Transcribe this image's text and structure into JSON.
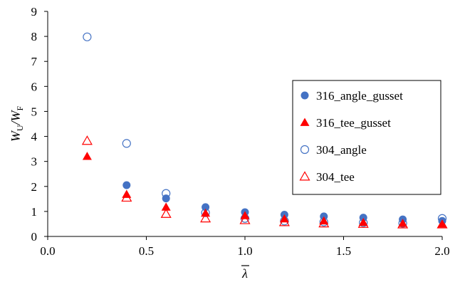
{
  "chart_data": {
    "type": "scatter",
    "xlabel": "λ",
    "ylabel": {
      "main": "W",
      "sub1": "U",
      "sep": "/W",
      "sub2": "F"
    },
    "xlim": [
      0.0,
      2.0
    ],
    "ylim": [
      0,
      9
    ],
    "x_ticks": [
      "0.0",
      "0.5",
      "1.0",
      "1.5",
      "2.0"
    ],
    "y_ticks": [
      "0",
      "1",
      "2",
      "3",
      "4",
      "5",
      "6",
      "7",
      "8",
      "9"
    ],
    "grid": false,
    "legend_position": "right",
    "series": [
      {
        "name": "316_angle_gusset",
        "marker": "filled-circle",
        "color": "#4472C4",
        "points": [
          [
            0.4,
            2.05
          ],
          [
            0.6,
            1.52
          ],
          [
            0.8,
            1.17
          ],
          [
            1.0,
            0.97
          ],
          [
            1.2,
            0.87
          ],
          [
            1.4,
            0.8
          ],
          [
            1.6,
            0.75
          ],
          [
            1.8,
            0.68
          ],
          [
            2.0,
            0.62
          ]
        ]
      },
      {
        "name": "316_tee_gusset",
        "marker": "filled-triangle",
        "color": "#FF0000",
        "points": [
          [
            0.2,
            3.2
          ],
          [
            0.4,
            1.68
          ],
          [
            0.6,
            1.17
          ],
          [
            0.8,
            0.93
          ],
          [
            1.0,
            0.83
          ],
          [
            1.2,
            0.7
          ],
          [
            1.4,
            0.62
          ],
          [
            1.6,
            0.56
          ],
          [
            1.8,
            0.52
          ],
          [
            2.0,
            0.5
          ]
        ]
      },
      {
        "name": "304_angle",
        "marker": "open-circle",
        "color": "#4472C4",
        "points": [
          [
            0.2,
            7.98
          ],
          [
            0.4,
            3.72
          ],
          [
            0.6,
            1.72
          ],
          [
            0.8,
            0.95
          ],
          [
            1.0,
            0.72
          ],
          [
            1.2,
            0.62
          ],
          [
            1.4,
            0.58
          ],
          [
            1.6,
            0.55
          ],
          [
            1.8,
            0.53
          ],
          [
            2.0,
            0.72
          ]
        ]
      },
      {
        "name": "304_tee",
        "marker": "open-triangle",
        "color": "#FF0000",
        "points": [
          [
            0.2,
            3.82
          ],
          [
            0.4,
            1.55
          ],
          [
            0.6,
            0.9
          ],
          [
            0.8,
            0.72
          ],
          [
            1.0,
            0.65
          ],
          [
            1.2,
            0.57
          ],
          [
            1.4,
            0.52
          ],
          [
            1.6,
            0.5
          ],
          [
            1.8,
            0.48
          ],
          [
            2.0,
            0.48
          ]
        ]
      }
    ]
  }
}
